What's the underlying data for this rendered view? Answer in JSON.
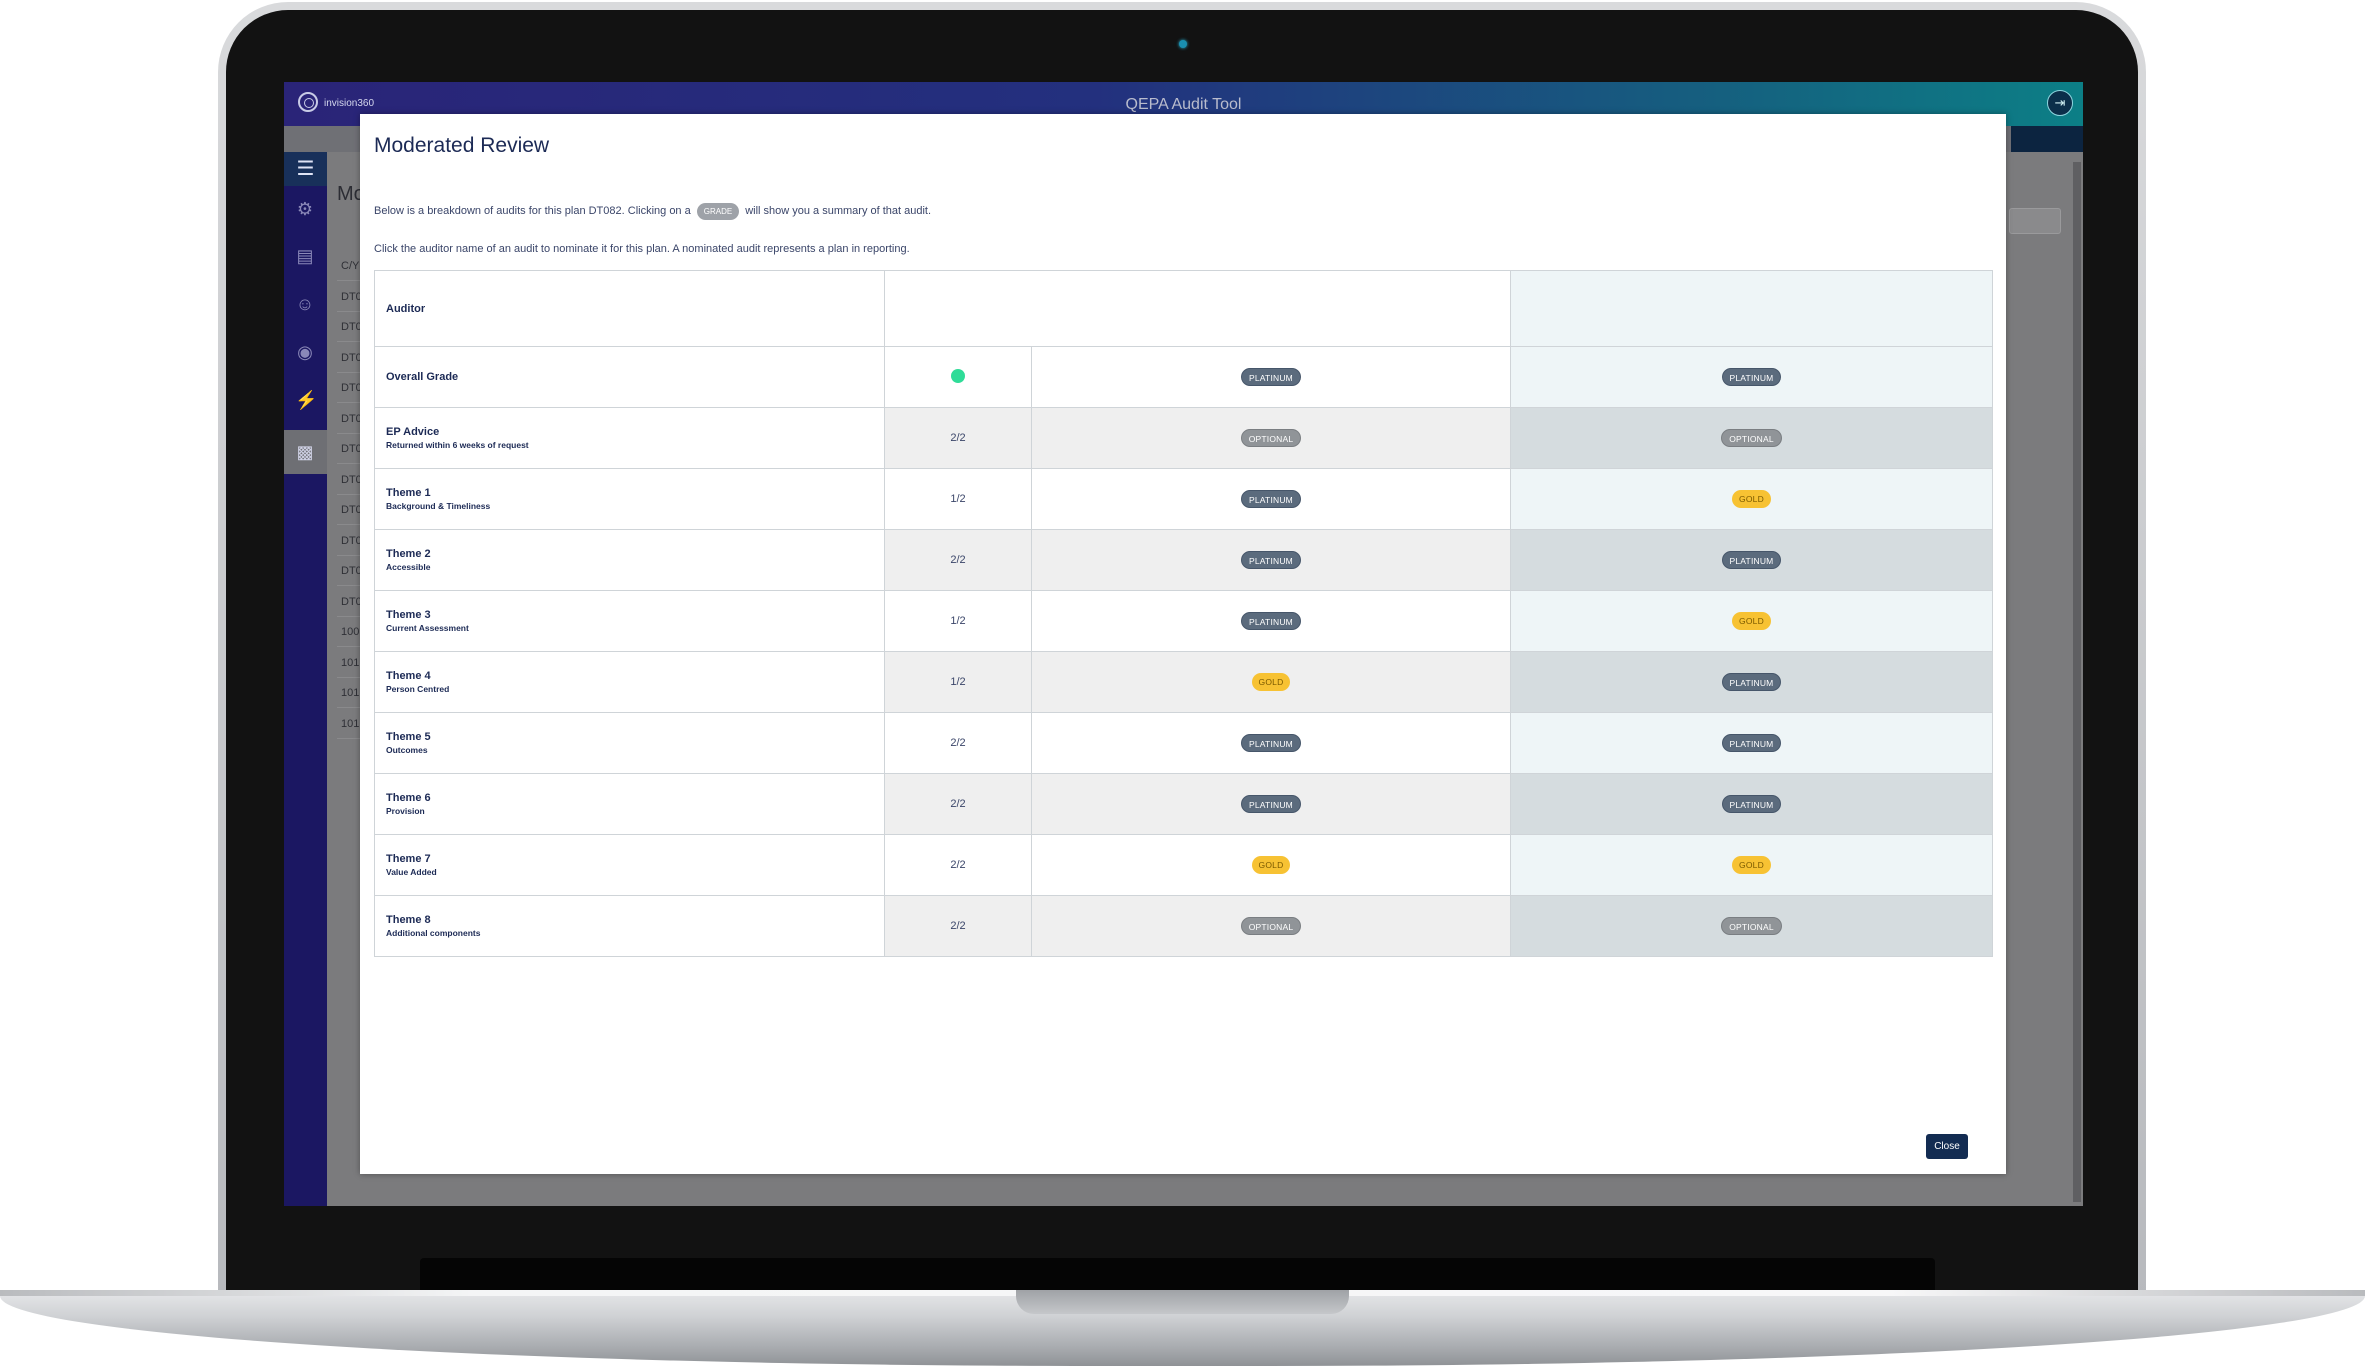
{
  "app": {
    "brand": "invision360",
    "title": "QEPA Audit Tool",
    "logout_icon": "logout-icon"
  },
  "background": {
    "heading": "Mo",
    "rows": [
      "C/Y",
      "DT0",
      "DT0",
      "DT0",
      "DT0",
      "DT0",
      "DT0",
      "DT0",
      "DT0",
      "DT0",
      "DT0",
      "DT0",
      "100",
      "101",
      "101",
      "101"
    ]
  },
  "sidebar": {
    "icons": [
      "menu-icon",
      "settings-icon",
      "document-icon",
      "users-icon",
      "review-icon",
      "audit-icon",
      "report-icon"
    ]
  },
  "modal": {
    "title": "Moderated Review",
    "intro_before": "Below is a breakdown of audits for this plan DT082. Clicking on a",
    "intro_chip": "GRADE",
    "intro_after": "will show you a summary of that audit.",
    "intro_line2": "Click the auditor name of an audit to nominate it for this plan. A nominated audit represents a plan in reporting.",
    "close_label": "Close"
  },
  "table": {
    "header_label": "Auditor",
    "overall": {
      "label": "Overall Grade",
      "grade1": "PLATINUM",
      "grade2": "PLATINUM"
    },
    "rows": [
      {
        "title": "EP Advice",
        "subtitle": "Returned within 6 weeks of request",
        "score": "2/2",
        "grade1": "OPTIONAL",
        "grade2": "OPTIONAL"
      },
      {
        "title": "Theme 1",
        "subtitle": "Background & Timeliness",
        "score": "1/2",
        "grade1": "PLATINUM",
        "grade2": "GOLD"
      },
      {
        "title": "Theme 2",
        "subtitle": "Accessible",
        "score": "2/2",
        "grade1": "PLATINUM",
        "grade2": "PLATINUM"
      },
      {
        "title": "Theme 3",
        "subtitle": "Current Assessment",
        "score": "1/2",
        "grade1": "PLATINUM",
        "grade2": "GOLD"
      },
      {
        "title": "Theme 4",
        "subtitle": "Person Centred",
        "score": "1/2",
        "grade1": "GOLD",
        "grade2": "PLATINUM"
      },
      {
        "title": "Theme 5",
        "subtitle": "Outcomes",
        "score": "2/2",
        "grade1": "PLATINUM",
        "grade2": "PLATINUM"
      },
      {
        "title": "Theme 6",
        "subtitle": "Provision",
        "score": "2/2",
        "grade1": "PLATINUM",
        "grade2": "PLATINUM"
      },
      {
        "title": "Theme 7",
        "subtitle": "Value Added",
        "score": "2/2",
        "grade1": "GOLD",
        "grade2": "GOLD"
      },
      {
        "title": "Theme 8",
        "subtitle": "Additional components",
        "score": "2/2",
        "grade1": "OPTIONAL",
        "grade2": "OPTIONAL"
      }
    ]
  },
  "colors": {
    "platinum": "#5b6b7d",
    "gold": "#f7c233",
    "optional": "#909498",
    "status_dot": "#2fdc98",
    "header_start": "#2a2478",
    "header_end": "#0c7f86"
  }
}
